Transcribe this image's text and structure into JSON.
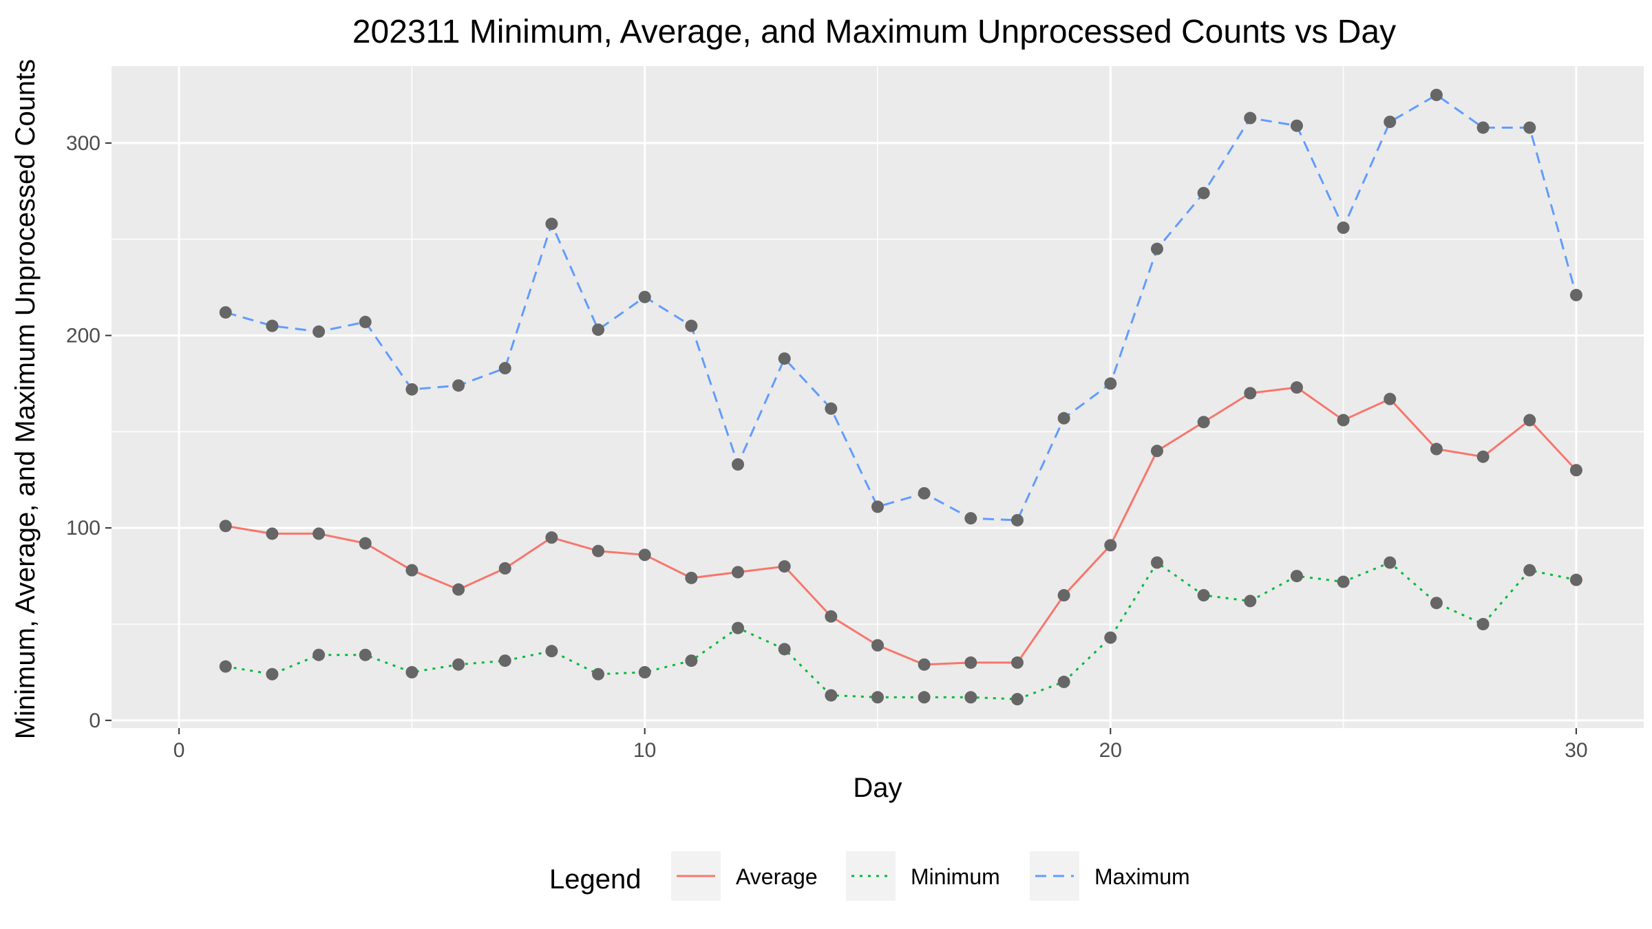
{
  "chart_data": {
    "type": "line",
    "title": "202311 Minimum, Average, and Maximum Unprocessed Counts vs Day",
    "xlabel": "Day",
    "ylabel": "Minimum, Average, and Maximum Unprocessed Counts",
    "xlim": [
      -1.45,
      31.45
    ],
    "ylim": [
      -4,
      340
    ],
    "x_ticks": [
      0,
      10,
      20,
      30
    ],
    "y_ticks": [
      0,
      100,
      200,
      300
    ],
    "grid": true,
    "legend": {
      "title": "Legend",
      "position": "bottom"
    },
    "x": [
      1,
      2,
      3,
      4,
      5,
      6,
      7,
      8,
      9,
      10,
      11,
      12,
      13,
      14,
      15,
      16,
      17,
      18,
      19,
      20,
      21,
      22,
      23,
      24,
      25,
      26,
      27,
      28,
      29,
      30
    ],
    "series": [
      {
        "name": "Average",
        "color": "#F8766D",
        "dash": "solid",
        "values": [
          101,
          97,
          97,
          92,
          78,
          68,
          79,
          95,
          88,
          86,
          74,
          77,
          80,
          54,
          39,
          29,
          30,
          30,
          65,
          91,
          140,
          155,
          170,
          173,
          156,
          167,
          141,
          137,
          156,
          130
        ]
      },
      {
        "name": "Minimum",
        "color": "#00BA38",
        "dash": "dotted",
        "values": [
          28,
          24,
          34,
          34,
          25,
          29,
          31,
          36,
          24,
          25,
          31,
          48,
          37,
          13,
          12,
          12,
          12,
          11,
          20,
          43,
          82,
          65,
          62,
          75,
          72,
          82,
          61,
          50,
          78,
          73
        ]
      },
      {
        "name": "Maximum",
        "color": "#619CFF",
        "dash": "dashed",
        "values": [
          212,
          205,
          202,
          207,
          172,
          174,
          183,
          258,
          203,
          220,
          205,
          133,
          188,
          162,
          111,
          118,
          105,
          104,
          157,
          175,
          245,
          274,
          313,
          309,
          256,
          311,
          325,
          308,
          308,
          221
        ]
      }
    ],
    "point_color": "#666666"
  }
}
